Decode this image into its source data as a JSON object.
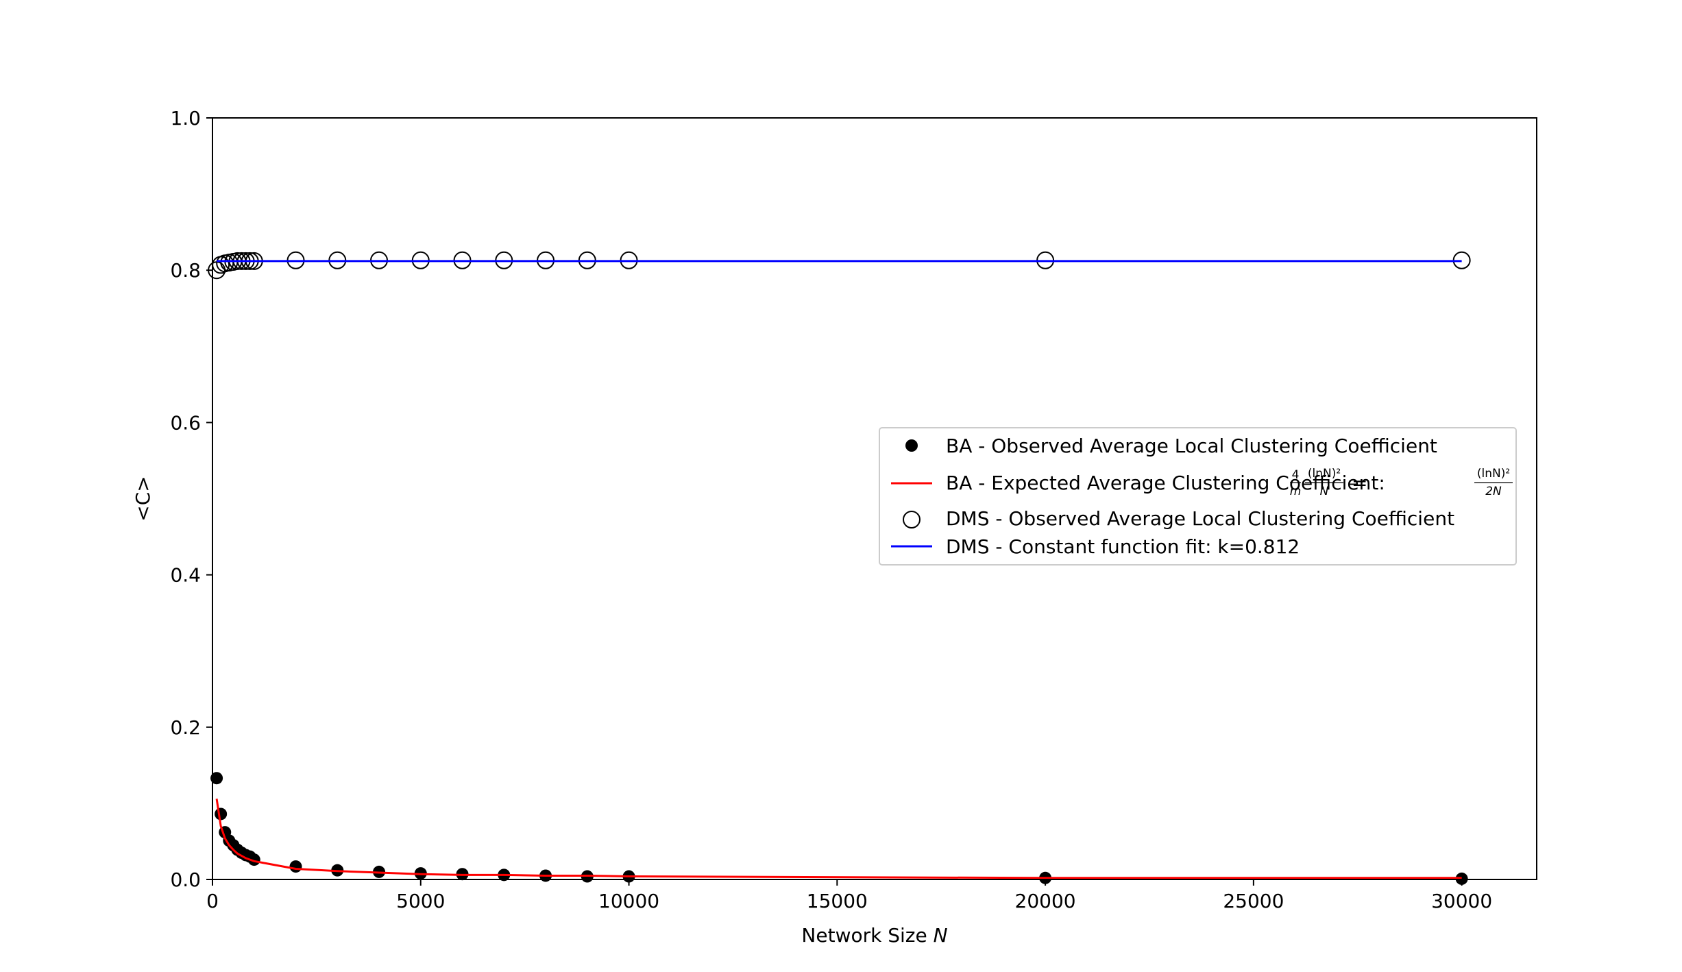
{
  "chart_data": {
    "type": "scatter",
    "xlabel_text": "Network Size ",
    "xlabel_var": "N",
    "ylabel": "<C>",
    "xlim": [
      0,
      31800
    ],
    "ylim": [
      0,
      1.0
    ],
    "x_ticks": [
      0,
      5000,
      10000,
      15000,
      20000,
      25000,
      30000
    ],
    "y_ticks": [
      0.0,
      0.2,
      0.4,
      0.6,
      0.8,
      1.0
    ],
    "x_tick_labels": [
      "0",
      "5000",
      "10000",
      "15000",
      "20000",
      "25000",
      "30000"
    ],
    "y_tick_labels": [
      "0.0",
      "0.2",
      "0.4",
      "0.6",
      "0.8",
      "1.0"
    ],
    "grid": false,
    "legend_position": "center-right",
    "series": [
      {
        "name": "BA - Observed Average Local Clustering Coefficient",
        "kind": "scatter",
        "marker": "filled-circle",
        "color": "#000000",
        "x": [
          100,
          200,
          300,
          400,
          500,
          600,
          700,
          800,
          900,
          1000,
          2000,
          3000,
          4000,
          5000,
          6000,
          7000,
          8000,
          9000,
          10000,
          20000,
          30000
        ],
        "y": [
          0.133,
          0.086,
          0.062,
          0.051,
          0.045,
          0.039,
          0.035,
          0.032,
          0.03,
          0.026,
          0.017,
          0.012,
          0.01,
          0.008,
          0.007,
          0.006,
          0.005,
          0.004,
          0.004,
          0.002,
          0.001
        ]
      },
      {
        "name": "BA - Expected Average Clustering Coefficient: ",
        "kind": "line",
        "color": "#ff0000",
        "x": [
          100,
          200,
          300,
          400,
          500,
          600,
          700,
          800,
          900,
          1000,
          2000,
          3000,
          4000,
          5000,
          6000,
          7000,
          8000,
          9000,
          10000,
          20000,
          30000
        ],
        "y": [
          0.106,
          0.07,
          0.054,
          0.045,
          0.039,
          0.034,
          0.031,
          0.028,
          0.026,
          0.024,
          0.014,
          0.011,
          0.009,
          0.007,
          0.006,
          0.006,
          0.005,
          0.005,
          0.004,
          0.002,
          0.002
        ]
      },
      {
        "name": "DMS - Observed Average Local Clustering Coefficient",
        "kind": "scatter",
        "marker": "open-circle",
        "color": "#000000",
        "x": [
          100,
          200,
          300,
          400,
          500,
          600,
          700,
          800,
          900,
          1000,
          2000,
          3000,
          4000,
          5000,
          6000,
          7000,
          8000,
          9000,
          10000,
          20000,
          30000
        ],
        "y": [
          0.8,
          0.807,
          0.809,
          0.81,
          0.811,
          0.812,
          0.812,
          0.812,
          0.812,
          0.812,
          0.813,
          0.813,
          0.813,
          0.813,
          0.813,
          0.813,
          0.813,
          0.813,
          0.813,
          0.813,
          0.813
        ]
      },
      {
        "name": "DMS - Constant function fit: k=0.812",
        "kind": "line",
        "color": "#0000ff",
        "x": [
          100,
          30000
        ],
        "y": [
          0.812,
          0.812
        ]
      }
    ],
    "formula": {
      "frac1_num": "4",
      "frac1_den": "m",
      "frac2_num": "(lnN)²",
      "frac2_den": "N",
      "equals": "=",
      "frac3_num": "(lnN)²",
      "frac3_den": "2N"
    }
  }
}
